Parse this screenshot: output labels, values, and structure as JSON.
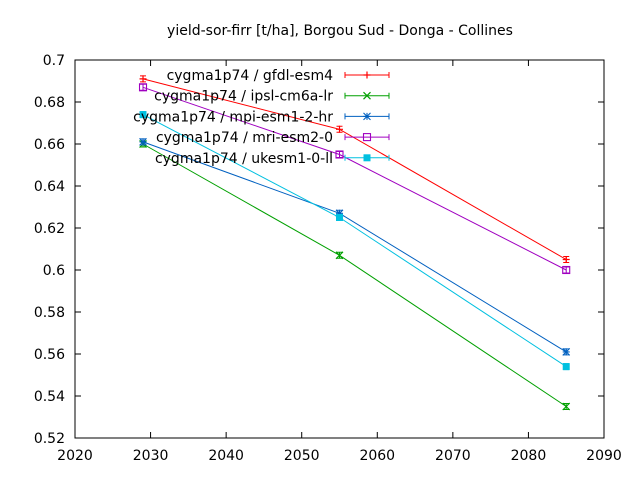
{
  "chart_data": {
    "type": "line",
    "title": "yield-sor-firr [t/ha], Borgou Sud - Donga - Collines",
    "xlabel": "",
    "ylabel": "",
    "xlim": [
      2020,
      2090
    ],
    "ylim": [
      0.52,
      0.7
    ],
    "xticks": [
      2020,
      2030,
      2040,
      2050,
      2060,
      2070,
      2080,
      2090
    ],
    "yticks": [
      0.52,
      0.54,
      0.56,
      0.58,
      0.6,
      0.62,
      0.64,
      0.66,
      0.68,
      0.7
    ],
    "ytick_labels": [
      "0.52",
      "0.54",
      "0.56",
      "0.58",
      "0.6",
      "0.62",
      "0.64",
      "0.66",
      "0.68",
      "0.7"
    ],
    "xtick_labels": [
      "2020",
      "2030",
      "2040",
      "2050",
      "2060",
      "2070",
      "2080",
      "2090"
    ],
    "grid": false,
    "legend_position": "top-left-inside",
    "series": [
      {
        "name": "cygma1p74 / gfdl-esm4",
        "color": "#ff0000",
        "marker": "plus",
        "x": [
          2029,
          2055,
          2085
        ],
        "y": [
          0.691,
          0.667,
          0.605
        ]
      },
      {
        "name": "cygma1p74 / ipsl-cm6a-lr",
        "color": "#00a000",
        "marker": "cross",
        "x": [
          2029,
          2055,
          2085
        ],
        "y": [
          0.66,
          0.607,
          0.535
        ]
      },
      {
        "name": "cygma1p74 / mpi-esm1-2-hr",
        "color": "#0060c0",
        "marker": "star",
        "x": [
          2029,
          2055,
          2085
        ],
        "y": [
          0.661,
          0.627,
          0.561
        ]
      },
      {
        "name": "cygma1p74 / mri-esm2-0",
        "color": "#a000c0",
        "marker": "open-square",
        "x": [
          2029,
          2055,
          2085
        ],
        "y": [
          0.687,
          0.655,
          0.6
        ]
      },
      {
        "name": "cygma1p74 / ukesm1-0-ll",
        "color": "#00c0e0",
        "marker": "filled-square",
        "x": [
          2029,
          2055,
          2085
        ],
        "y": [
          0.674,
          0.625,
          0.554
        ]
      }
    ]
  }
}
